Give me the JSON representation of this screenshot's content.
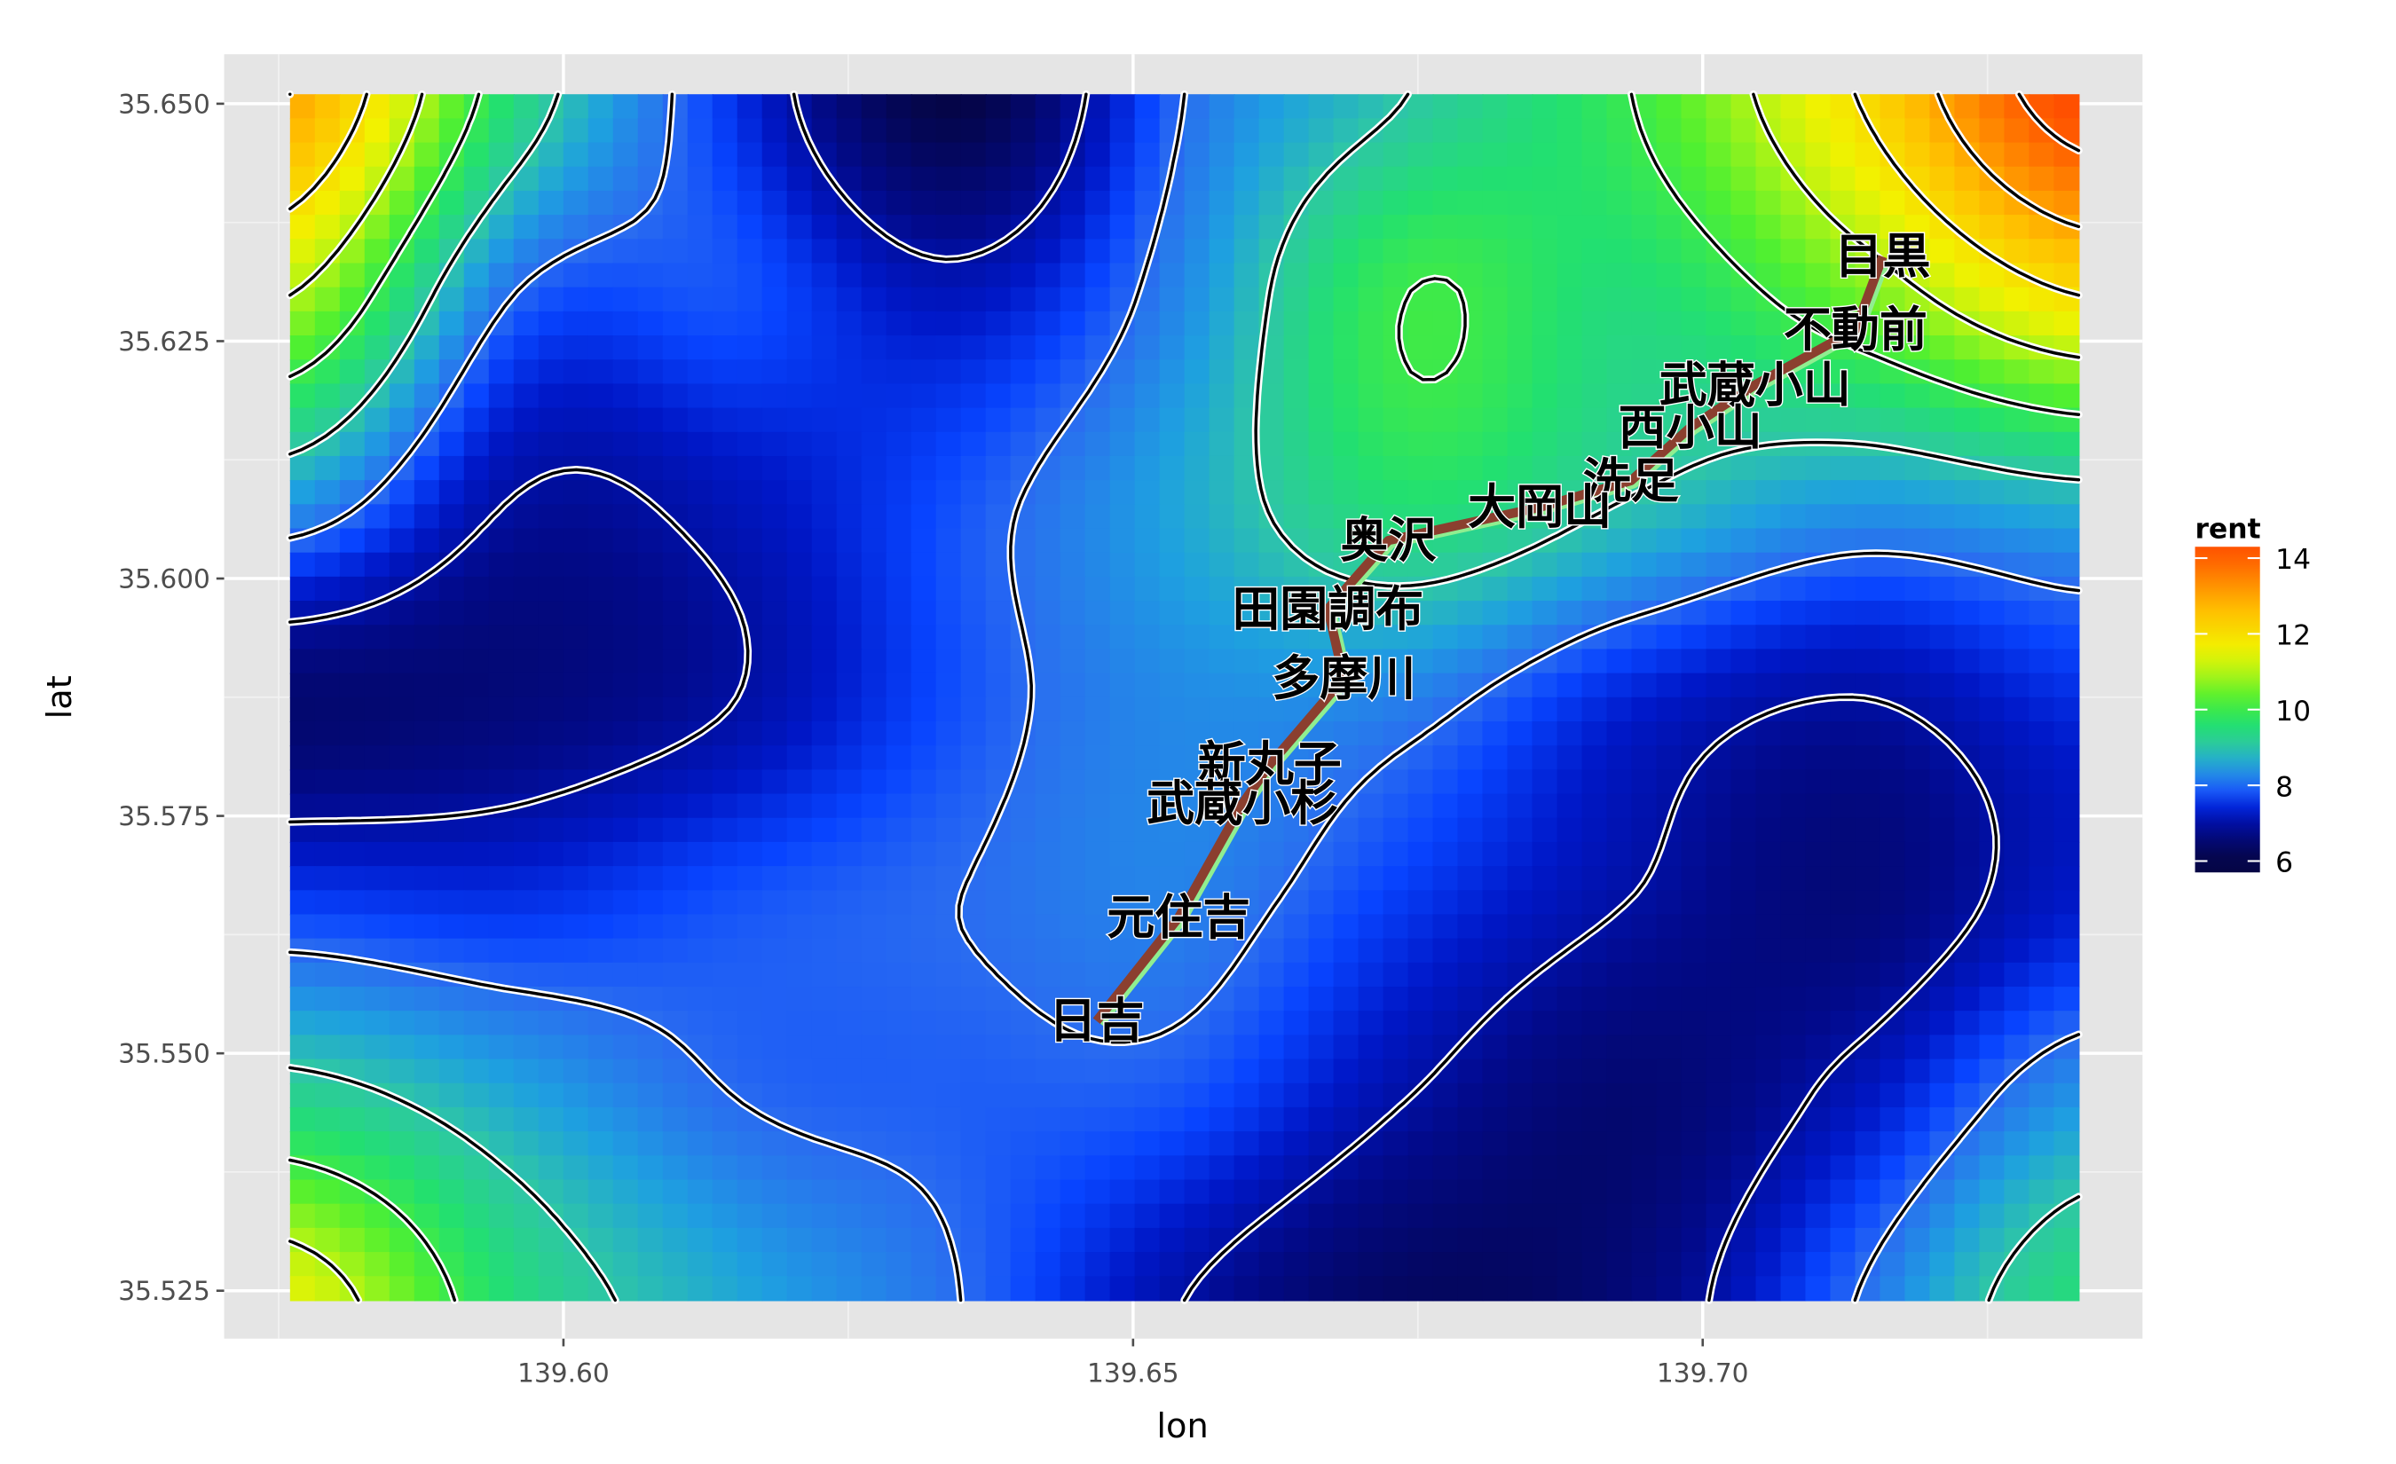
{
  "chart_data": {
    "type": "heatmap",
    "title": "",
    "xlabel": "lon",
    "ylabel": "lat",
    "xlim": [
      139.576,
      139.733
    ],
    "ylim": [
      35.524,
      35.651
    ],
    "x_ticks": [
      "139.60",
      "139.65",
      "139.70"
    ],
    "x_tick_values": [
      139.6,
      139.65,
      139.7
    ],
    "y_ticks": [
      "35.525",
      "35.550",
      "35.575",
      "35.600",
      "35.625",
      "35.650"
    ],
    "y_tick_values": [
      35.525,
      35.55,
      35.575,
      35.6,
      35.625,
      35.65
    ],
    "grid": true,
    "legend": {
      "title": "rent",
      "position": "right",
      "ticks": [
        "6",
        "8",
        "10",
        "12",
        "14"
      ],
      "tick_values": [
        6,
        8,
        10,
        12,
        14
      ]
    },
    "color_scale": [
      {
        "value": 6.0,
        "color": "#050545"
      },
      {
        "value": 6.8,
        "color": "#020a8a"
      },
      {
        "value": 7.3,
        "color": "#0018c8"
      },
      {
        "value": 7.7,
        "color": "#0844ff"
      },
      {
        "value": 8.0,
        "color": "#2a6cf0"
      },
      {
        "value": 8.5,
        "color": "#1ea0e0"
      },
      {
        "value": 9.0,
        "color": "#2ec6a6"
      },
      {
        "value": 9.6,
        "color": "#22e070"
      },
      {
        "value": 10.3,
        "color": "#50f030"
      },
      {
        "value": 11.0,
        "color": "#b4f414"
      },
      {
        "value": 11.6,
        "color": "#f2f200"
      },
      {
        "value": 12.6,
        "color": "#ffc000"
      },
      {
        "value": 14.0,
        "color": "#ff6000"
      },
      {
        "value": 15.0,
        "color": "#ff3000"
      }
    ],
    "rent_grid": {
      "lon": [
        139.576,
        139.5956,
        139.6152,
        139.6348,
        139.6545,
        139.6741,
        139.6937,
        139.7133,
        139.733
      ],
      "lat": [
        35.651,
        35.6298,
        35.6087,
        35.5875,
        35.5663,
        35.5452,
        35.524
      ],
      "rent": [
        [
          13.0,
          9.5,
          7.5,
          6.0,
          8.0,
          9.0,
          10.0,
          12.0,
          14.5
        ],
        [
          11.0,
          8.0,
          7.8,
          7.2,
          8.3,
          10.0,
          9.5,
          10.5,
          12.0
        ],
        [
          8.5,
          7.0,
          7.2,
          7.8,
          8.6,
          9.6,
          9.0,
          8.5,
          8.8
        ],
        [
          6.5,
          6.6,
          7.0,
          7.8,
          8.3,
          8.2,
          7.4,
          7.0,
          7.5
        ],
        [
          7.6,
          7.5,
          7.8,
          8.0,
          8.2,
          7.6,
          7.0,
          6.6,
          7.3
        ],
        [
          9.3,
          8.6,
          8.0,
          7.9,
          7.8,
          7.0,
          6.5,
          7.2,
          8.4
        ],
        [
          11.5,
          9.5,
          8.6,
          8.0,
          7.0,
          6.3,
          6.6,
          8.0,
          9.5
        ]
      ]
    },
    "contour_levels": [
      7,
      8,
      9,
      10,
      11,
      12,
      13,
      14
    ],
    "line": {
      "color": "#8b3f2f",
      "outline_color": "#90ee90"
    },
    "stations": [
      {
        "name": "目黒",
        "lon": 139.7158,
        "lat": 35.6339
      },
      {
        "name": "不動前",
        "lon": 139.7134,
        "lat": 35.6262
      },
      {
        "name": "武蔵小山",
        "lon": 139.7046,
        "lat": 35.6204
      },
      {
        "name": "西小山",
        "lon": 139.6989,
        "lat": 35.6159
      },
      {
        "name": "洗足",
        "lon": 139.6937,
        "lat": 35.6103
      },
      {
        "name": "大岡山",
        "lon": 139.6857,
        "lat": 35.6075
      },
      {
        "name": "奥沢",
        "lon": 139.6724,
        "lat": 35.604
      },
      {
        "name": "田園調布",
        "lon": 139.6671,
        "lat": 35.5968
      },
      {
        "name": "多摩川",
        "lon": 139.6685,
        "lat": 35.5895
      },
      {
        "name": "新丸子",
        "lon": 139.662,
        "lat": 35.5804
      },
      {
        "name": "武蔵小杉",
        "lon": 139.6596,
        "lat": 35.5763
      },
      {
        "name": "元住吉",
        "lon": 139.654,
        "lat": 35.5643
      },
      {
        "name": "日吉",
        "lon": 139.6468,
        "lat": 35.5534
      }
    ]
  }
}
